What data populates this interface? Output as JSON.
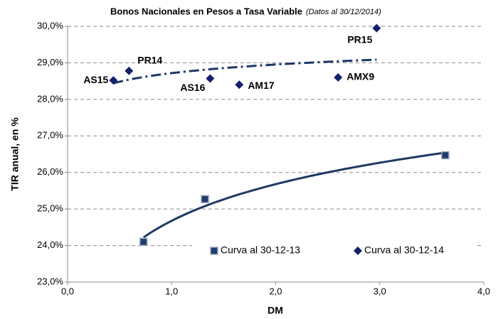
{
  "chart_data": {
    "type": "scatter",
    "title": "Bonos Nacionales en Pesos a Tasa Variable",
    "subtitle": "(Datos al 30/12/2014)",
    "xlabel": "DM",
    "ylabel": "TIR anual, en %",
    "xlim": [
      0,
      4
    ],
    "ylim": [
      23,
      30
    ],
    "xticks": [
      {
        "value": 0,
        "label": "0,0"
      },
      {
        "value": 1,
        "label": "1,0"
      },
      {
        "value": 2,
        "label": "2,0"
      },
      {
        "value": 3,
        "label": "3,0"
      },
      {
        "value": 4,
        "label": "4,0"
      }
    ],
    "yticks": [
      {
        "value": 23,
        "label": "23,0%"
      },
      {
        "value": 24,
        "label": "24,0%"
      },
      {
        "value": 25,
        "label": "25,0%"
      },
      {
        "value": 26,
        "label": "26,0%"
      },
      {
        "value": 27,
        "label": "27,0%"
      },
      {
        "value": 28,
        "label": "28,0%"
      },
      {
        "value": 29,
        "label": "29,0%"
      },
      {
        "value": 30,
        "label": "30,0%"
      }
    ],
    "grid": true,
    "legend": "lower right",
    "series": [
      {
        "name": "Curva al 30-12-13",
        "color": "#1f3c6e",
        "marker": "square",
        "trendline": "log",
        "trendline_style": "solid",
        "x": [
          0.73,
          1.32,
          3.63
        ],
        "values": [
          24.1,
          25.27,
          26.47
        ]
      },
      {
        "name": "Curva al 30-12-14",
        "color": "#14206b",
        "marker": "diamond",
        "trendline": "log",
        "trendline_style": "dashed",
        "labels": [
          "AS15",
          "PR14",
          "AS16",
          "AM17",
          "AMX9",
          "PR15"
        ],
        "x": [
          0.44,
          0.59,
          1.37,
          1.65,
          2.6,
          2.97
        ],
        "values": [
          28.52,
          28.78,
          28.57,
          28.4,
          28.6,
          29.95
        ]
      }
    ]
  }
}
